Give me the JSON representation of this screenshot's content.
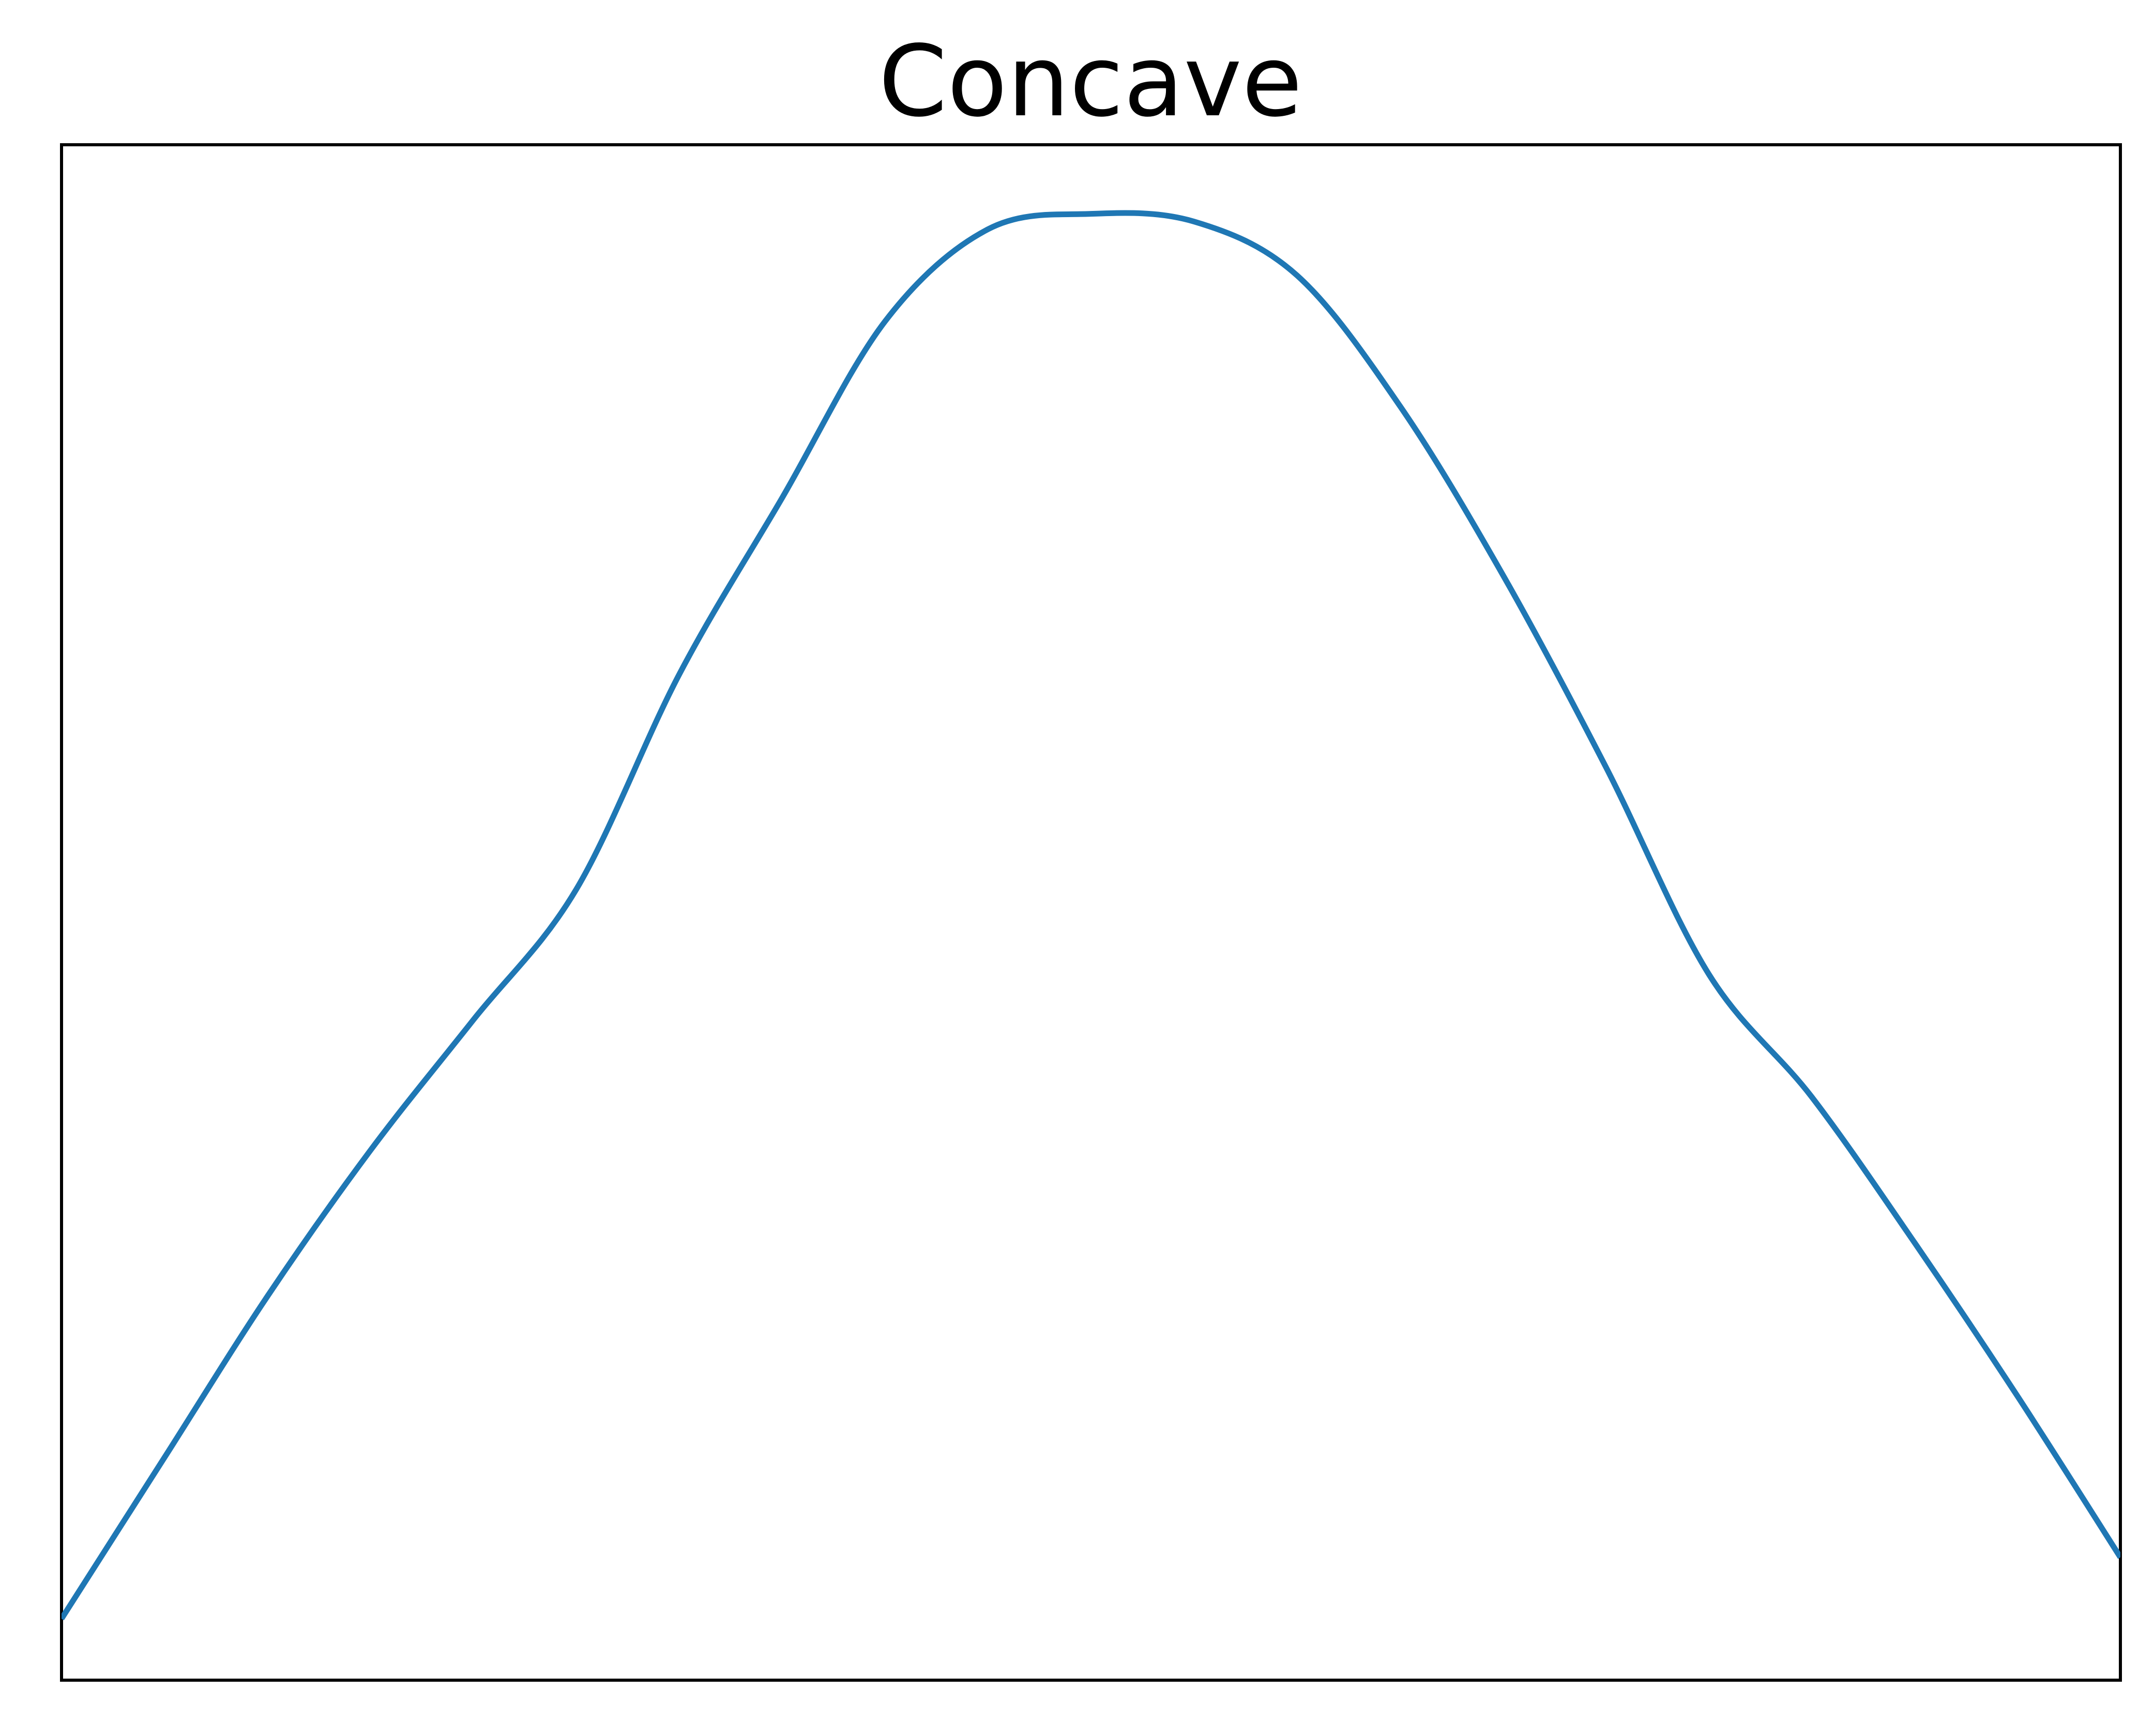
{
  "chart_data": {
    "type": "line",
    "title": "Concave",
    "xlabel": "",
    "ylabel": "",
    "grid": false,
    "xlim": [
      -1,
      1
    ],
    "ylim": [
      -0.95,
      1.05
    ],
    "x_ticks_visible": false,
    "y_ticks_visible": false,
    "series": [
      {
        "color": "#1f77b4",
        "x": [
          -1.0,
          -0.9,
          -0.8,
          -0.7,
          -0.6,
          -0.5,
          -0.4,
          -0.3,
          -0.2,
          -0.1,
          0.0,
          0.1,
          0.2,
          0.3,
          0.4,
          0.5,
          0.6,
          0.7,
          0.8,
          0.9,
          1.0
        ],
        "y": [
          -0.87,
          -0.66,
          -0.45,
          -0.26,
          -0.09,
          0.08,
          0.36,
          0.59,
          0.82,
          0.94,
          0.96,
          0.95,
          0.88,
          0.71,
          0.49,
          0.24,
          -0.03,
          -0.19,
          -0.38,
          -0.58,
          -0.79
        ]
      }
    ]
  }
}
